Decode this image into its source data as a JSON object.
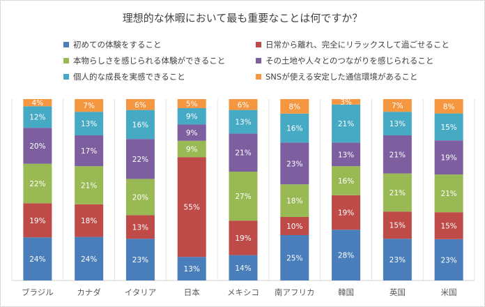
{
  "chart_data": {
    "type": "bar",
    "stacked": true,
    "normalized": true,
    "title": "理想的な休暇において最も重要なことは何ですか？",
    "categories": [
      "ブラジル",
      "カナダ",
      "イタリア",
      "日本",
      "メキシコ",
      "南アフリカ",
      "韓国",
      "英国",
      "米国"
    ],
    "series": [
      {
        "name": "初めての体験をすること",
        "color": "#4a7ebb",
        "values": [
          24,
          24,
          23,
          13,
          14,
          25,
          28,
          23,
          23
        ]
      },
      {
        "name": "日常から離れ、完全にリラックスして過ごせること",
        "color": "#be4b48",
        "values": [
          19,
          18,
          13,
          55,
          19,
          10,
          19,
          15,
          15
        ]
      },
      {
        "name": "本物らしさを感じられる体験ができること",
        "color": "#98b954",
        "values": [
          22,
          21,
          20,
          9,
          27,
          18,
          16,
          21,
          21
        ]
      },
      {
        "name": "その土地や人々とのつながりを感じられること",
        "color": "#7d5fa0",
        "values": [
          20,
          17,
          22,
          9,
          21,
          23,
          13,
          21,
          19
        ]
      },
      {
        "name": "個人的な成長を実感できること",
        "color": "#46aac5",
        "values": [
          12,
          13,
          16,
          9,
          13,
          16,
          21,
          13,
          15
        ]
      },
      {
        "name": "SNSが使える安定した通信環境があること",
        "color": "#f59640",
        "values": [
          4,
          7,
          6,
          5,
          6,
          8,
          3,
          7,
          8
        ]
      }
    ],
    "data_label_suffix": "%",
    "legend_position": "top",
    "grid": false
  }
}
